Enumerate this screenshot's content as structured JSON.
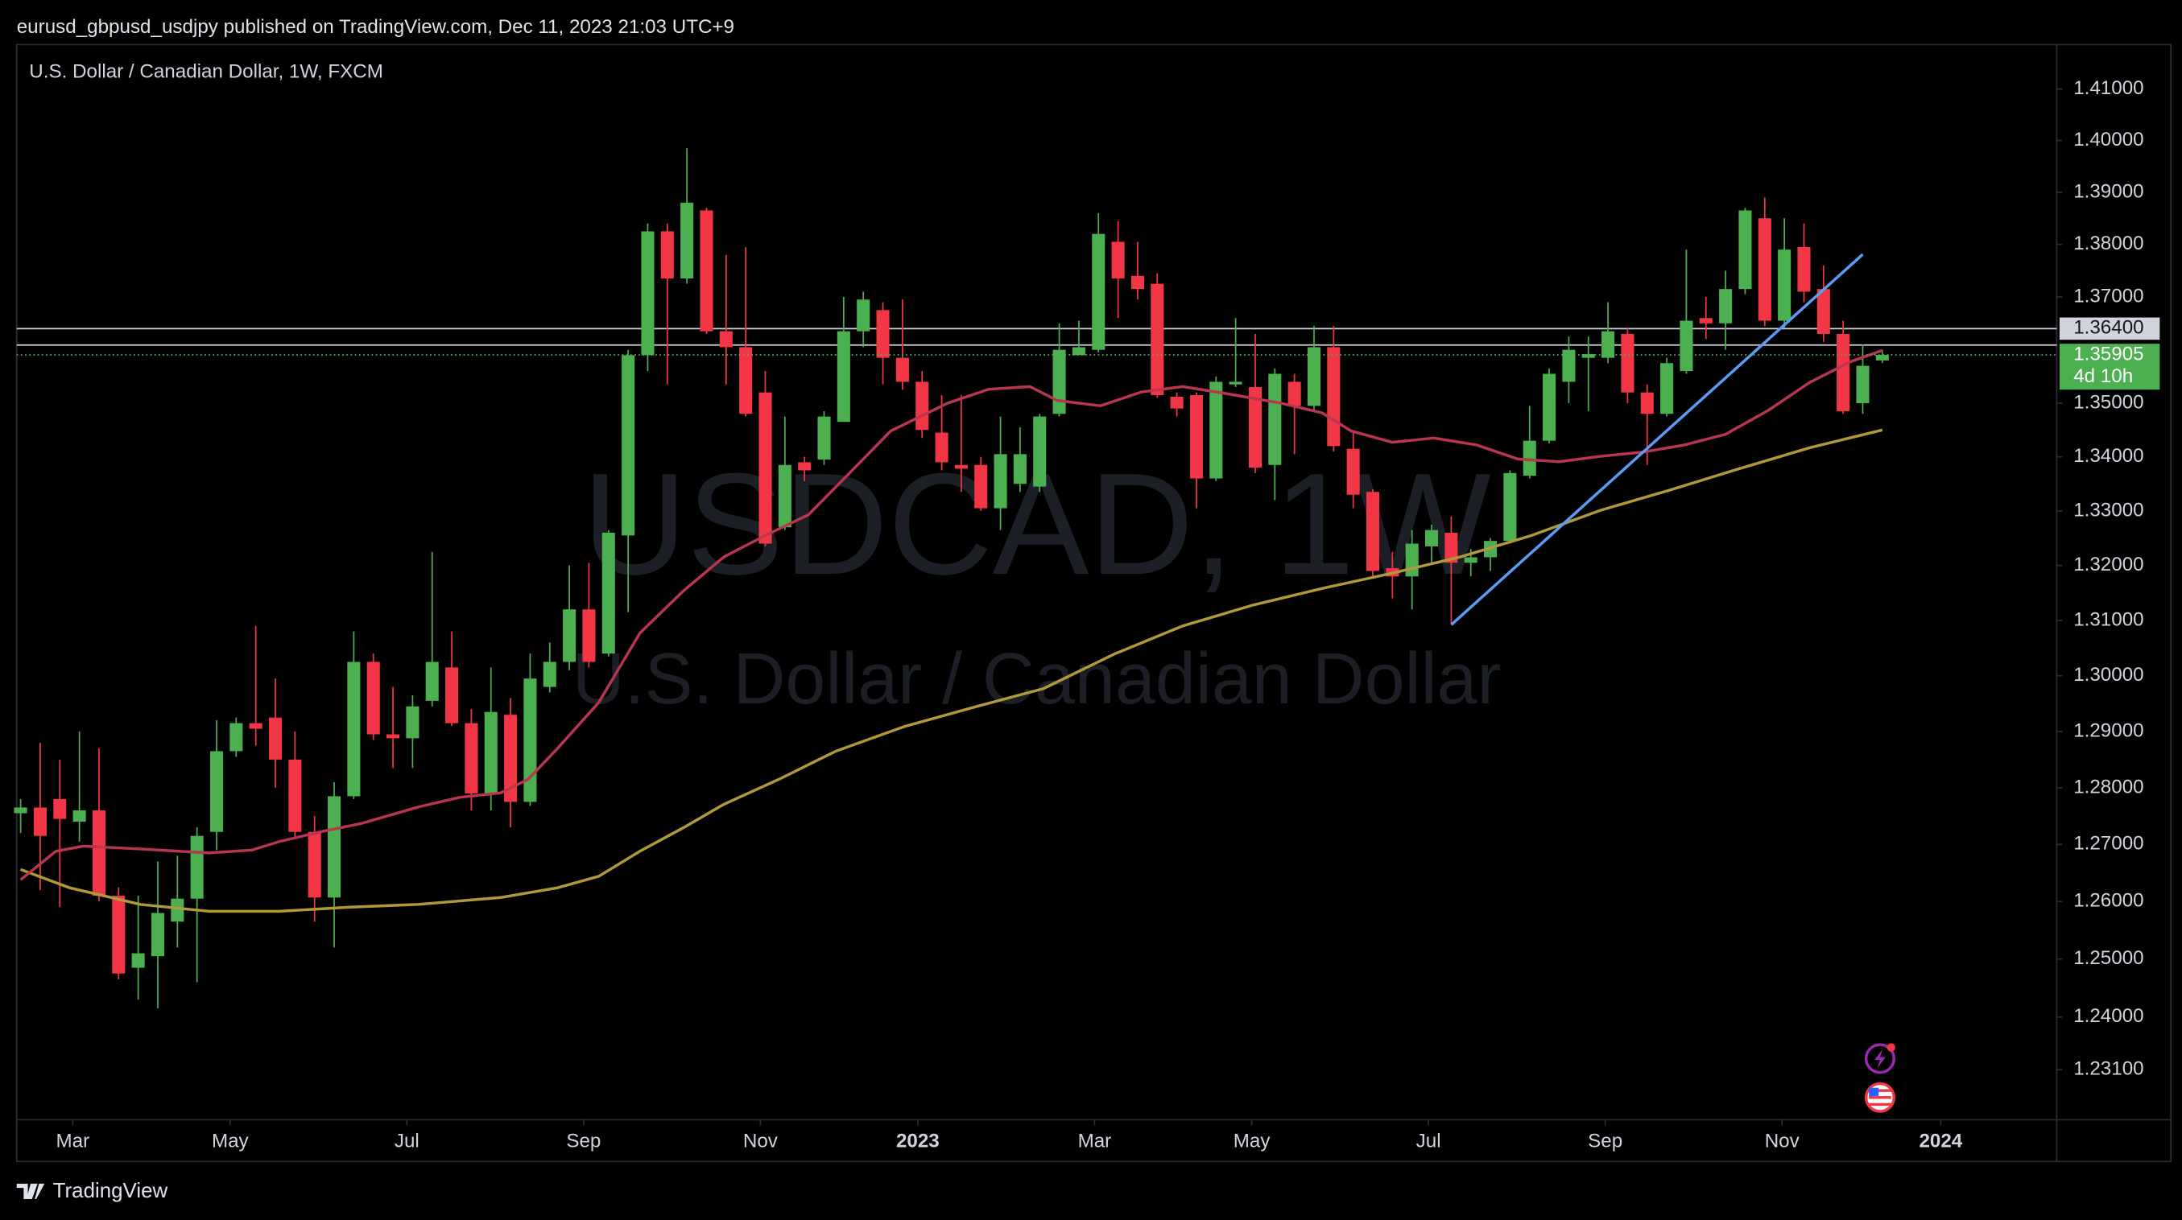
{
  "header": "eurusd_gbpusd_usdjpy published on TradingView.com, Dec 11, 2023 21:03 UTC+9",
  "footer": "TradingView",
  "chart_data": {
    "type": "candlestick",
    "title": "U.S. Dollar / Canadian Dollar, 1W, FXCM",
    "watermark": "USDCAD, 1W",
    "watermark_subtitle": "U.S. Dollar / Canadian Dollar",
    "log_scale": true,
    "up_color": "#4caf50",
    "down_color": "#f23645",
    "xlim": [
      -0.2,
      103.9
    ],
    "ylim": [
      1.2225,
      1.4187
    ],
    "xticks": [
      {
        "value": 2.66,
        "label": "Mar"
      },
      {
        "value": 10.69,
        "label": "May"
      },
      {
        "value": 19.71,
        "label": "Jul"
      },
      {
        "value": 28.73,
        "label": "Sep"
      },
      {
        "value": 37.75,
        "label": "Nov"
      },
      {
        "value": 45.78,
        "label": "2023"
      },
      {
        "value": 54.8,
        "label": "Mar"
      },
      {
        "value": 62.82,
        "label": "May"
      },
      {
        "value": 71.84,
        "label": "Jul"
      },
      {
        "value": 80.86,
        "label": "Sep"
      },
      {
        "value": 89.88,
        "label": "Nov"
      },
      {
        "value": 97.98,
        "label": "2024"
      }
    ],
    "bold_xticks": [
      "2023",
      "2024"
    ],
    "yticks": [
      {
        "value": 1.41,
        "label": "1.41000"
      },
      {
        "value": 1.4,
        "label": "1.40000"
      },
      {
        "value": 1.39,
        "label": "1.39000"
      },
      {
        "value": 1.38,
        "label": "1.38000"
      },
      {
        "value": 1.37,
        "label": "1.37000"
      },
      {
        "value": 1.35,
        "label": "1.35000"
      },
      {
        "value": 1.34,
        "label": "1.34000"
      },
      {
        "value": 1.33,
        "label": "1.33000"
      },
      {
        "value": 1.32,
        "label": "1.32000"
      },
      {
        "value": 1.31,
        "label": "1.31000"
      },
      {
        "value": 1.3,
        "label": "1.30000"
      },
      {
        "value": 1.29,
        "label": "1.29000"
      },
      {
        "value": 1.28,
        "label": "1.28000"
      },
      {
        "value": 1.27,
        "label": "1.27000"
      },
      {
        "value": 1.26,
        "label": "1.26000"
      },
      {
        "value": 1.25,
        "label": "1.25000"
      },
      {
        "value": 1.24,
        "label": "1.24000"
      },
      {
        "value": 1.231,
        "label": "1.23100"
      }
    ],
    "open": [
      1.2755,
      1.2765,
      1.278,
      1.274,
      1.276,
      1.261,
      1.2485,
      1.2505,
      1.2565,
      1.2605,
      1.2722,
      1.2865,
      1.2915,
      1.2925,
      1.285,
      1.2722,
      1.2607,
      1.2785,
      1.3025,
      1.2895,
      1.2888,
      1.2955,
      1.3015,
      1.2915,
      1.279,
      1.293,
      1.2775,
      1.298,
      1.3025,
      1.312,
      1.304,
      1.3255,
      1.359,
      1.3825,
      1.3735,
      1.3865,
      1.3635,
      1.3605,
      1.352,
      1.327,
      1.339,
      1.3395,
      1.3465,
      1.3635,
      1.3675,
      1.3585,
      1.354,
      1.3445,
      1.3385,
      1.3385,
      1.3305,
      1.335,
      1.3345,
      1.348,
      1.359,
      1.36,
      1.3805,
      1.374,
      1.3725,
      1.3512,
      1.3515,
      1.336,
      1.3535,
      1.353,
      1.3385,
      1.354,
      1.3495,
      1.3605,
      1.3415,
      1.3335,
      1.3195,
      1.318,
      1.3235,
      1.326,
      1.3205,
      1.3215,
      1.3245,
      1.3365,
      1.343,
      1.354,
      1.3585,
      1.3585,
      1.363,
      1.352,
      1.348,
      1.356,
      1.366,
      1.365,
      1.3715,
      1.385,
      1.3655,
      1.3795,
      1.3715,
      1.363,
      1.35,
      1.358
    ],
    "high": [
      1.278,
      1.288,
      1.285,
      1.29,
      1.287,
      1.2625,
      1.261,
      1.267,
      1.268,
      1.273,
      1.292,
      1.2925,
      1.309,
      1.2995,
      1.29,
      1.275,
      1.281,
      1.308,
      1.304,
      1.298,
      1.2965,
      1.3225,
      1.308,
      1.294,
      1.3015,
      1.296,
      1.304,
      1.306,
      1.32,
      1.3205,
      1.3265,
      1.36,
      1.384,
      1.384,
      1.3985,
      1.387,
      1.378,
      1.3795,
      1.356,
      1.3475,
      1.34,
      1.3485,
      1.37,
      1.371,
      1.369,
      1.3695,
      1.356,
      1.3515,
      1.3515,
      1.34,
      1.3475,
      1.3455,
      1.348,
      1.365,
      1.3655,
      1.386,
      1.3845,
      1.3805,
      1.3745,
      1.352,
      1.352,
      1.355,
      1.366,
      1.363,
      1.3565,
      1.3555,
      1.3645,
      1.3645,
      1.3445,
      1.334,
      1.3225,
      1.3265,
      1.3275,
      1.329,
      1.323,
      1.325,
      1.3375,
      1.3495,
      1.3565,
      1.3625,
      1.3625,
      1.369,
      1.364,
      1.3535,
      1.3585,
      1.379,
      1.37,
      1.375,
      1.387,
      1.389,
      1.385,
      1.384,
      1.376,
      1.3655,
      1.361,
      1.36
    ],
    "low": [
      1.272,
      1.262,
      1.259,
      1.2705,
      1.26,
      1.2465,
      1.243,
      1.2415,
      1.252,
      1.246,
      1.269,
      1.2855,
      1.2875,
      1.28,
      1.271,
      1.2565,
      1.252,
      1.278,
      1.2885,
      1.2835,
      1.2835,
      1.2945,
      1.291,
      1.276,
      1.276,
      1.273,
      1.2768,
      1.297,
      1.301,
      1.3015,
      1.3035,
      1.3115,
      1.356,
      1.3535,
      1.3725,
      1.363,
      1.3535,
      1.3475,
      1.3235,
      1.3265,
      1.3355,
      1.3385,
      1.3465,
      1.3605,
      1.3535,
      1.3525,
      1.3435,
      1.3375,
      1.3335,
      1.33,
      1.3265,
      1.3335,
      1.3335,
      1.3475,
      1.359,
      1.3595,
      1.366,
      1.3695,
      1.351,
      1.3475,
      1.3305,
      1.3355,
      1.353,
      1.337,
      1.332,
      1.3405,
      1.3488,
      1.341,
      1.3305,
      1.318,
      1.314,
      1.312,
      1.3205,
      1.3095,
      1.318,
      1.319,
      1.324,
      1.336,
      1.3425,
      1.35,
      1.3485,
      1.3575,
      1.35,
      1.3385,
      1.3475,
      1.3555,
      1.362,
      1.36,
      1.3705,
      1.3645,
      1.364,
      1.369,
      1.3615,
      1.348,
      1.348,
      1.3575
    ],
    "close": [
      1.2765,
      1.2715,
      1.2745,
      1.276,
      1.261,
      1.2475,
      1.251,
      1.258,
      1.2605,
      1.2715,
      1.2865,
      1.2915,
      1.2905,
      1.285,
      1.2722,
      1.2607,
      1.2785,
      1.3025,
      1.2895,
      1.2888,
      1.2945,
      1.3025,
      1.2915,
      1.279,
      1.2935,
      1.2775,
      1.2995,
      1.3025,
      1.312,
      1.3025,
      1.326,
      1.359,
      1.3825,
      1.3735,
      1.388,
      1.3635,
      1.3605,
      1.348,
      1.324,
      1.3385,
      1.3375,
      1.3475,
      1.3635,
      1.3695,
      1.3585,
      1.354,
      1.345,
      1.339,
      1.3378,
      1.3305,
      1.3405,
      1.3405,
      1.3475,
      1.36,
      1.3605,
      1.382,
      1.3735,
      1.3715,
      1.3515,
      1.349,
      1.336,
      1.354,
      1.354,
      1.338,
      1.3555,
      1.3495,
      1.3605,
      1.342,
      1.333,
      1.319,
      1.318,
      1.324,
      1.3265,
      1.3205,
      1.3215,
      1.3245,
      1.337,
      1.343,
      1.3555,
      1.36,
      1.3592,
      1.3635,
      1.352,
      1.348,
      1.3575,
      1.3655,
      1.365,
      1.3715,
      1.3865,
      1.3655,
      1.379,
      1.371,
      1.363,
      1.3485,
      1.357,
      1.35905
    ],
    "series": [
      {
        "color": "#b0993a",
        "x": [
          0,
          2.5,
          6.1,
          9.6,
          13.2,
          16.7,
          20.3,
          24.5,
          27.4,
          29.5,
          31.6,
          33.8,
          35.9,
          38.7,
          41.6,
          45.1,
          48.7,
          52.2,
          55.8,
          59.3,
          62.9,
          66.4,
          70,
          73.5,
          77.1,
          80.6,
          84.2,
          87.7,
          91.3,
          95
        ],
        "values": [
          1.2656,
          1.2624,
          1.2595,
          1.2583,
          1.2583,
          1.259,
          1.2595,
          1.2607,
          1.2624,
          1.2644,
          1.2688,
          1.2729,
          1.2771,
          1.2815,
          1.2865,
          1.2909,
          1.2944,
          1.2977,
          1.3039,
          1.309,
          1.3128,
          1.3158,
          1.3186,
          1.3216,
          1.3255,
          1.3301,
          1.3339,
          1.3378,
          1.3417,
          1.345
        ]
      },
      {
        "color": "#b8364f",
        "x": [
          0,
          1.8,
          3.2,
          6.1,
          9.6,
          11.8,
          13.2,
          15.3,
          17.4,
          20.3,
          22.4,
          24.5,
          25.9,
          27.4,
          29.5,
          31.6,
          33.8,
          35.9,
          38,
          40.2,
          42.3,
          44.4,
          47.3,
          49.4,
          51.5,
          52.9,
          55.1,
          57.2,
          59.3,
          61.5,
          64.3,
          66.4,
          67.9,
          70,
          72.1,
          74.3,
          76.4,
          78.5,
          80.6,
          82.8,
          84.9,
          87,
          89.2,
          91.3,
          93.4,
          95
        ],
        "values": [
          1.2638,
          1.2688,
          1.2697,
          1.2692,
          1.2685,
          1.269,
          1.2705,
          1.2722,
          1.2737,
          1.2766,
          1.2783,
          1.2791,
          1.2815,
          1.287,
          1.2952,
          1.3077,
          1.3153,
          1.3216,
          1.3255,
          1.3293,
          1.337,
          1.3448,
          1.35,
          1.3526,
          1.3531,
          1.3505,
          1.3495,
          1.3521,
          1.3531,
          1.3518,
          1.35,
          1.3482,
          1.3448,
          1.3427,
          1.3435,
          1.3422,
          1.3396,
          1.3391,
          1.3401,
          1.3409,
          1.3422,
          1.3442,
          1.3487,
          1.3539,
          1.3578,
          1.3599
        ]
      }
    ],
    "trendline": {
      "color": "#5b9cf6",
      "x": [
        73,
        94
      ],
      "values": [
        1.3092,
        1.3781
      ]
    },
    "hlines": [
      {
        "value": 1.364,
        "label": "1.36400",
        "color": "#d1d4dc"
      },
      {
        "value": 1.3609,
        "color": "#d1d4dc"
      }
    ],
    "last_price": {
      "value": 1.35905,
      "label": "1.35905",
      "countdown": "4d 10h",
      "color": "#4caf50"
    }
  }
}
